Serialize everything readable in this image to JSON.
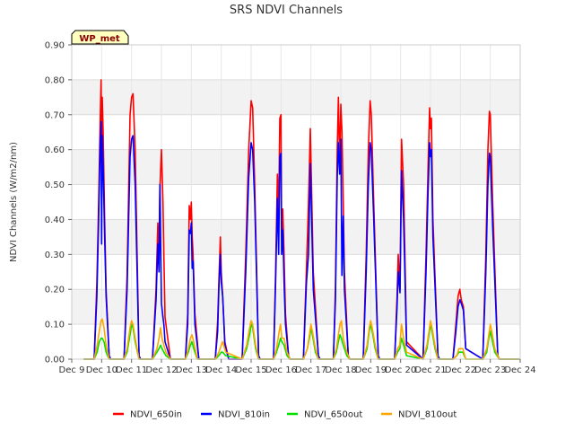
{
  "chart_data": {
    "type": "line",
    "title": "SRS NDVI Channels",
    "ylabel": "NDVI Channels (W/m2/nm)",
    "xlabel": "",
    "badge": "WP_met",
    "xlim": [
      9,
      24
    ],
    "ylim": [
      0,
      0.9
    ],
    "x_ticks": [
      9,
      10,
      11,
      12,
      13,
      14,
      15,
      16,
      17,
      18,
      19,
      20,
      21,
      22,
      23,
      24
    ],
    "x_tick_labels": [
      "Dec 9",
      "Dec 10",
      "Dec 11",
      "Dec 12",
      "Dec 13",
      "Dec 14",
      "Dec 15",
      "Dec 16",
      "Dec 17",
      "Dec 18",
      "Dec 19",
      "Dec 20",
      "Dec 21",
      "Dec 22",
      "Dec 23",
      "Dec 24"
    ],
    "y_ticks": [
      0,
      0.1,
      0.2,
      0.3,
      0.4,
      0.5,
      0.6,
      0.7,
      0.8,
      0.9
    ],
    "y_tick_labels": [
      "0.00",
      "0.10",
      "0.20",
      "0.30",
      "0.40",
      "0.50",
      "0.60",
      "0.70",
      "0.80",
      "0.90"
    ],
    "grid": true,
    "legend_position": "bottom",
    "series": [
      {
        "name": "NDVI_650in",
        "color": "#ff0000",
        "x": [
          9.4,
          9.75,
          9.84,
          9.9,
          9.95,
          9.98,
          10.0,
          10.02,
          10.05,
          10.1,
          10.15,
          10.25,
          10.3,
          10.75,
          10.85,
          10.95,
          11.0,
          11.05,
          11.12,
          11.25,
          11.3,
          11.7,
          11.82,
          11.88,
          11.92,
          11.95,
          12.0,
          12.05,
          12.08,
          12.12,
          12.3,
          12.8,
          12.88,
          12.93,
          12.97,
          13.0,
          13.03,
          13.06,
          13.12,
          13.25,
          13.8,
          13.88,
          13.92,
          13.97,
          14.0,
          14.05,
          14.12,
          14.25,
          14.7,
          14.82,
          14.92,
          15.0,
          15.05,
          15.12,
          15.25,
          15.3,
          15.75,
          15.82,
          15.88,
          15.92,
          15.96,
          16.0,
          16.02,
          16.06,
          16.1,
          16.15,
          16.25,
          16.3,
          16.75,
          16.85,
          16.92,
          16.98,
          17.02,
          17.08,
          17.25,
          17.3,
          17.75,
          17.82,
          17.88,
          17.92,
          17.96,
          18.0,
          18.04,
          18.08,
          18.12,
          18.25,
          18.3,
          18.75,
          18.85,
          18.92,
          18.98,
          19.02,
          19.1,
          19.25,
          19.3,
          19.8,
          19.88,
          19.92,
          19.98,
          20.03,
          20.1,
          20.2,
          20.75,
          20.85,
          20.92,
          20.97,
          21.0,
          21.03,
          21.08,
          21.25,
          21.3,
          21.75,
          21.85,
          21.92,
          21.98,
          22.03,
          22.1,
          22.18,
          22.75,
          22.85,
          22.92,
          22.97,
          23.0,
          23.03,
          23.08,
          23.25,
          23.3,
          24.0
        ],
        "y": [
          0.0,
          0.0,
          0.22,
          0.45,
          0.68,
          0.8,
          0.62,
          0.75,
          0.65,
          0.4,
          0.2,
          0.01,
          0.0,
          0.0,
          0.24,
          0.7,
          0.75,
          0.76,
          0.6,
          0.01,
          0.0,
          0.0,
          0.2,
          0.39,
          0.3,
          0.49,
          0.6,
          0.45,
          0.3,
          0.12,
          0.0,
          0.0,
          0.13,
          0.44,
          0.4,
          0.45,
          0.35,
          0.3,
          0.13,
          0.0,
          0.0,
          0.11,
          0.22,
          0.35,
          0.25,
          0.18,
          0.05,
          0.0,
          0.0,
          0.3,
          0.6,
          0.74,
          0.72,
          0.5,
          0.01,
          0.0,
          0.0,
          0.25,
          0.53,
          0.42,
          0.69,
          0.7,
          0.35,
          0.43,
          0.3,
          0.13,
          0.01,
          0.0,
          0.0,
          0.26,
          0.45,
          0.66,
          0.5,
          0.25,
          0.01,
          0.0,
          0.0,
          0.2,
          0.6,
          0.75,
          0.55,
          0.73,
          0.65,
          0.45,
          0.25,
          0.01,
          0.0,
          0.0,
          0.3,
          0.6,
          0.74,
          0.7,
          0.45,
          0.01,
          0.0,
          0.0,
          0.18,
          0.3,
          0.2,
          0.63,
          0.5,
          0.05,
          0.0,
          0.3,
          0.55,
          0.72,
          0.66,
          0.69,
          0.4,
          0.01,
          0.0,
          0.0,
          0.1,
          0.18,
          0.2,
          0.17,
          0.15,
          0.03,
          0.0,
          0.3,
          0.6,
          0.71,
          0.7,
          0.6,
          0.45,
          0.01,
          0.0,
          0.0
        ]
      },
      {
        "name": "NDVI_810in",
        "color": "#0000ff",
        "x": [
          9.4,
          9.75,
          9.84,
          9.9,
          9.95,
          9.98,
          10.0,
          10.02,
          10.05,
          10.1,
          10.15,
          10.25,
          10.3,
          10.75,
          10.85,
          10.95,
          11.0,
          11.05,
          11.12,
          11.25,
          11.3,
          11.7,
          11.82,
          11.88,
          11.92,
          11.95,
          12.0,
          12.05,
          12.08,
          12.12,
          12.3,
          12.8,
          12.88,
          12.93,
          12.97,
          13.0,
          13.03,
          13.06,
          13.12,
          13.25,
          13.8,
          13.88,
          13.92,
          13.97,
          14.0,
          14.05,
          14.12,
          14.25,
          14.7,
          14.82,
          14.92,
          15.0,
          15.05,
          15.12,
          15.25,
          15.3,
          15.75,
          15.82,
          15.88,
          15.92,
          15.96,
          16.0,
          16.02,
          16.06,
          16.1,
          16.15,
          16.25,
          16.3,
          16.75,
          16.85,
          16.92,
          16.98,
          17.02,
          17.08,
          17.25,
          17.3,
          17.75,
          17.82,
          17.88,
          17.92,
          17.96,
          18.0,
          18.04,
          18.08,
          18.12,
          18.25,
          18.3,
          18.75,
          18.85,
          18.92,
          18.98,
          19.02,
          19.1,
          19.25,
          19.3,
          19.8,
          19.88,
          19.92,
          19.98,
          20.03,
          20.1,
          20.2,
          20.75,
          20.85,
          20.92,
          20.97,
          21.0,
          21.03,
          21.08,
          21.25,
          21.3,
          21.75,
          21.85,
          21.92,
          21.98,
          22.03,
          22.1,
          22.18,
          22.75,
          22.85,
          22.92,
          22.97,
          23.0,
          23.03,
          23.08,
          23.25,
          23.3,
          24.0
        ],
        "y": [
          0.0,
          0.0,
          0.18,
          0.4,
          0.62,
          0.68,
          0.33,
          0.64,
          0.55,
          0.35,
          0.18,
          0.01,
          0.0,
          0.0,
          0.2,
          0.58,
          0.63,
          0.64,
          0.5,
          0.01,
          0.0,
          0.0,
          0.17,
          0.33,
          0.25,
          0.5,
          0.16,
          0.12,
          0.1,
          0.05,
          0.0,
          0.0,
          0.1,
          0.37,
          0.36,
          0.39,
          0.26,
          0.28,
          0.1,
          0.0,
          0.0,
          0.08,
          0.2,
          0.3,
          0.22,
          0.18,
          0.04,
          0.0,
          0.0,
          0.25,
          0.52,
          0.62,
          0.6,
          0.45,
          0.01,
          0.0,
          0.0,
          0.22,
          0.46,
          0.3,
          0.58,
          0.59,
          0.3,
          0.37,
          0.22,
          0.1,
          0.01,
          0.0,
          0.0,
          0.22,
          0.3,
          0.56,
          0.42,
          0.2,
          0.01,
          0.0,
          0.0,
          0.17,
          0.52,
          0.62,
          0.53,
          0.63,
          0.24,
          0.41,
          0.2,
          0.01,
          0.0,
          0.0,
          0.25,
          0.5,
          0.62,
          0.6,
          0.4,
          0.01,
          0.0,
          0.0,
          0.15,
          0.25,
          0.19,
          0.54,
          0.4,
          0.04,
          0.0,
          0.25,
          0.48,
          0.62,
          0.58,
          0.6,
          0.35,
          0.01,
          0.0,
          0.0,
          0.08,
          0.15,
          0.17,
          0.16,
          0.14,
          0.03,
          0.0,
          0.25,
          0.5,
          0.59,
          0.58,
          0.5,
          0.38,
          0.01,
          0.0,
          0.0
        ]
      },
      {
        "name": "NDVI_650out",
        "color": "#00e000",
        "x": [
          9.4,
          9.75,
          9.85,
          9.92,
          9.98,
          10.02,
          10.08,
          10.15,
          10.25,
          10.3,
          10.75,
          10.85,
          10.95,
          11.0,
          11.05,
          11.12,
          11.25,
          11.3,
          11.7,
          11.85,
          11.92,
          11.97,
          12.02,
          12.08,
          12.15,
          12.3,
          12.8,
          12.9,
          12.97,
          13.02,
          13.08,
          13.2,
          13.8,
          13.92,
          14.0,
          14.05,
          14.15,
          14.7,
          14.85,
          14.95,
          15.0,
          15.05,
          15.15,
          15.25,
          15.75,
          15.85,
          15.92,
          15.98,
          16.03,
          16.1,
          16.2,
          16.3,
          16.75,
          16.88,
          16.95,
          17.0,
          17.05,
          17.15,
          17.25,
          17.75,
          17.85,
          17.92,
          17.97,
          18.02,
          18.08,
          18.2,
          18.3,
          18.75,
          18.88,
          18.95,
          19.0,
          19.05,
          19.15,
          19.25,
          19.8,
          19.9,
          19.97,
          20.03,
          20.1,
          20.2,
          20.75,
          20.88,
          20.95,
          21.0,
          21.05,
          21.15,
          21.25,
          21.75,
          21.88,
          21.95,
          22.02,
          22.08,
          22.18,
          22.75,
          22.88,
          22.95,
          23.0,
          23.05,
          23.15,
          23.3,
          24.0
        ],
        "y": [
          0.0,
          0.0,
          0.02,
          0.05,
          0.06,
          0.06,
          0.05,
          0.02,
          0.0,
          0.0,
          0.0,
          0.02,
          0.07,
          0.1,
          0.09,
          0.05,
          0.0,
          0.0,
          0.0,
          0.02,
          0.03,
          0.04,
          0.03,
          0.02,
          0.01,
          0.0,
          0.0,
          0.02,
          0.04,
          0.05,
          0.03,
          0.0,
          0.0,
          0.01,
          0.02,
          0.02,
          0.01,
          0.0,
          0.03,
          0.07,
          0.1,
          0.09,
          0.03,
          0.0,
          0.0,
          0.02,
          0.04,
          0.06,
          0.05,
          0.04,
          0.01,
          0.0,
          0.0,
          0.03,
          0.06,
          0.09,
          0.07,
          0.02,
          0.0,
          0.0,
          0.02,
          0.05,
          0.07,
          0.06,
          0.04,
          0.01,
          0.0,
          0.0,
          0.03,
          0.08,
          0.1,
          0.08,
          0.03,
          0.0,
          0.0,
          0.02,
          0.03,
          0.06,
          0.04,
          0.01,
          0.0,
          0.03,
          0.07,
          0.1,
          0.08,
          0.03,
          0.0,
          0.0,
          0.01,
          0.02,
          0.02,
          0.02,
          0.0,
          0.0,
          0.02,
          0.06,
          0.08,
          0.06,
          0.02,
          0.0,
          0.0
        ]
      },
      {
        "name": "NDVI_810out",
        "color": "#ffa500",
        "x": [
          9.4,
          9.75,
          9.85,
          9.92,
          9.98,
          10.02,
          10.08,
          10.15,
          10.25,
          10.3,
          10.75,
          10.85,
          10.95,
          11.0,
          11.05,
          11.12,
          11.25,
          11.3,
          11.7,
          11.85,
          11.92,
          11.97,
          12.02,
          12.08,
          12.15,
          12.3,
          12.8,
          12.9,
          12.97,
          13.02,
          13.08,
          13.2,
          13.8,
          13.92,
          14.0,
          14.05,
          14.15,
          14.7,
          14.85,
          14.95,
          15.0,
          15.05,
          15.15,
          15.25,
          15.75,
          15.85,
          15.92,
          15.98,
          16.03,
          16.1,
          16.2,
          16.3,
          16.75,
          16.88,
          16.95,
          17.0,
          17.05,
          17.15,
          17.25,
          17.75,
          17.85,
          17.92,
          17.97,
          18.02,
          18.08,
          18.2,
          18.3,
          18.75,
          18.88,
          18.95,
          19.0,
          19.05,
          19.15,
          19.25,
          19.8,
          19.9,
          19.97,
          20.03,
          20.1,
          20.2,
          20.75,
          20.88,
          20.95,
          21.0,
          21.05,
          21.15,
          21.25,
          21.75,
          21.88,
          21.95,
          22.02,
          22.08,
          22.18,
          22.75,
          22.88,
          22.95,
          23.0,
          23.05,
          23.15,
          23.3,
          24.0
        ],
        "y": [
          0.0,
          0.0,
          0.04,
          0.08,
          0.11,
          0.115,
          0.09,
          0.04,
          0.0,
          0.0,
          0.0,
          0.03,
          0.09,
          0.11,
          0.1,
          0.06,
          0.0,
          0.0,
          0.0,
          0.03,
          0.06,
          0.09,
          0.06,
          0.04,
          0.02,
          0.0,
          0.0,
          0.03,
          0.06,
          0.07,
          0.05,
          0.0,
          0.0,
          0.02,
          0.04,
          0.05,
          0.02,
          0.0,
          0.04,
          0.09,
          0.11,
          0.1,
          0.04,
          0.0,
          0.0,
          0.03,
          0.07,
          0.1,
          0.06,
          0.06,
          0.02,
          0.0,
          0.0,
          0.03,
          0.07,
          0.1,
          0.08,
          0.03,
          0.0,
          0.0,
          0.03,
          0.07,
          0.1,
          0.11,
          0.06,
          0.02,
          0.0,
          0.0,
          0.04,
          0.09,
          0.11,
          0.09,
          0.04,
          0.0,
          0.0,
          0.03,
          0.04,
          0.1,
          0.06,
          0.02,
          0.0,
          0.04,
          0.08,
          0.11,
          0.09,
          0.04,
          0.0,
          0.0,
          0.01,
          0.03,
          0.03,
          0.03,
          0.0,
          0.0,
          0.03,
          0.07,
          0.1,
          0.08,
          0.03,
          0.0,
          0.0
        ]
      }
    ]
  }
}
